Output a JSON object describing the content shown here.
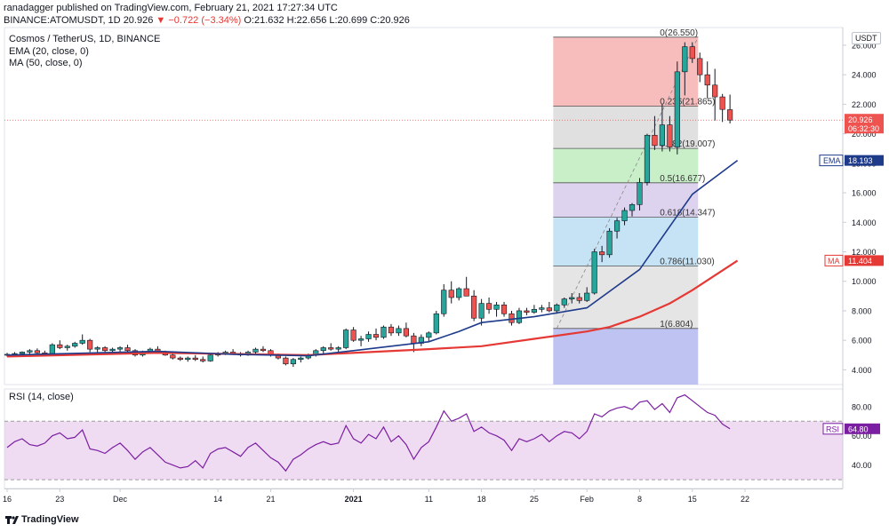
{
  "header": {
    "published": "ranadagger published on TradingView.com, February 21, 2021 17:27:34 UTC",
    "symbol": "BINANCE:ATOMUSDT, 1D",
    "last": "20.926",
    "change": "▼ −0.722 (−3.34%)",
    "ohlc": "O:21.632 H:22.656 L:20.699 C:20.926"
  },
  "legend": {
    "title": "Cosmos / TetherUS, 1D, BINANCE",
    "ema": "EMA (20, close, 0)",
    "ma": "MA (50, close, 0)",
    "rsi": "RSI (14, close)"
  },
  "currency": "USDT",
  "footer": {
    "brand": "TradingView"
  },
  "colors": {
    "up": "#26a69a",
    "down": "#ef5350",
    "candle_border": "#131722",
    "ema": "#1e3a8a",
    "ma": "#e53935",
    "rsi": "#7b1fa2",
    "rsi_band": "#e1bee7",
    "fib_0": "#f4a7a7",
    "fib_236": "#d5d5d5",
    "fib_382": "#b7e9b7",
    "fib_5": "#d1c4e9",
    "fib_618": "#b3d9f2",
    "fib_786": "#dcdcdc",
    "fib_1": "#b4b8f0"
  },
  "chart_data": {
    "type": "candlestick",
    "title": "Cosmos / TetherUS, 1D, BINANCE",
    "xlabel": "",
    "ylabel": "",
    "ylim": [
      3,
      27.2
    ],
    "y_ticks": [
      "4.000",
      "6.000",
      "8.000",
      "10.000",
      "12.000",
      "14.000",
      "16.000",
      "18.000",
      "20.000",
      "22.000",
      "24.000",
      "26.000"
    ],
    "x_ticks": [
      {
        "label": "16",
        "day": 0
      },
      {
        "label": "23",
        "day": 7
      },
      {
        "label": "Dec",
        "day": 15
      },
      {
        "label": "14",
        "day": 28
      },
      {
        "label": "21",
        "day": 35
      },
      {
        "label": "2021",
        "day": 46
      },
      {
        "label": "11",
        "day": 56
      },
      {
        "label": "18",
        "day": 63
      },
      {
        "label": "25",
        "day": 70
      },
      {
        "label": "Feb",
        "day": 77
      },
      {
        "label": "8",
        "day": 84
      },
      {
        "label": "15",
        "day": 91
      },
      {
        "label": "22",
        "day": 98
      }
    ],
    "start_date": "2020-11-16",
    "candles": [
      [
        5.0,
        5.15,
        4.9,
        5.05
      ],
      [
        5.05,
        5.2,
        4.95,
        5.1
      ],
      [
        5.1,
        5.25,
        5.0,
        5.2
      ],
      [
        5.2,
        5.4,
        5.05,
        5.3
      ],
      [
        5.3,
        5.45,
        5.1,
        5.15
      ],
      [
        5.15,
        5.3,
        5.0,
        5.1
      ],
      [
        5.1,
        5.8,
        5.05,
        5.7
      ],
      [
        5.7,
        6.0,
        5.4,
        5.5
      ],
      [
        5.5,
        5.7,
        5.3,
        5.6
      ],
      [
        5.6,
        5.9,
        5.5,
        5.8
      ],
      [
        5.8,
        6.4,
        5.7,
        6.0
      ],
      [
        6.0,
        6.1,
        5.2,
        5.4
      ],
      [
        5.4,
        5.6,
        5.2,
        5.5
      ],
      [
        5.5,
        5.6,
        5.2,
        5.3
      ],
      [
        5.3,
        5.5,
        5.1,
        5.4
      ],
      [
        5.4,
        5.6,
        5.2,
        5.5
      ],
      [
        5.5,
        5.7,
        5.2,
        5.3
      ],
      [
        5.3,
        5.4,
        4.9,
        5.0
      ],
      [
        5.0,
        5.3,
        4.9,
        5.2
      ],
      [
        5.2,
        5.5,
        5.1,
        5.4
      ],
      [
        5.4,
        5.6,
        5.1,
        5.2
      ],
      [
        5.2,
        5.3,
        4.95,
        5.0
      ],
      [
        5.0,
        5.1,
        4.7,
        4.8
      ],
      [
        4.8,
        4.9,
        4.6,
        4.7
      ],
      [
        4.7,
        4.9,
        4.55,
        4.8
      ],
      [
        4.8,
        5.0,
        4.6,
        4.7
      ],
      [
        4.7,
        4.9,
        4.5,
        4.6
      ],
      [
        4.6,
        5.1,
        4.55,
        5.0
      ],
      [
        5.0,
        5.2,
        4.9,
        5.1
      ],
      [
        5.1,
        5.3,
        5.0,
        5.2
      ],
      [
        5.2,
        5.4,
        5.05,
        5.1
      ],
      [
        5.1,
        5.2,
        4.9,
        5.0
      ],
      [
        5.0,
        5.3,
        4.95,
        5.2
      ],
      [
        5.2,
        5.5,
        5.1,
        5.4
      ],
      [
        5.4,
        5.6,
        5.2,
        5.3
      ],
      [
        5.3,
        5.4,
        4.9,
        5.0
      ],
      [
        5.0,
        5.1,
        4.7,
        4.8
      ],
      [
        4.8,
        4.9,
        4.3,
        4.4
      ],
      [
        4.4,
        4.8,
        4.2,
        4.7
      ],
      [
        4.7,
        4.9,
        4.5,
        4.8
      ],
      [
        4.8,
        5.1,
        4.7,
        5.0
      ],
      [
        5.0,
        5.4,
        4.9,
        5.3
      ],
      [
        5.3,
        5.6,
        5.1,
        5.5
      ],
      [
        5.5,
        5.8,
        5.3,
        5.4
      ],
      [
        5.4,
        5.6,
        5.2,
        5.5
      ],
      [
        5.5,
        6.8,
        5.4,
        6.7
      ],
      [
        6.7,
        6.9,
        5.9,
        6.0
      ],
      [
        6.0,
        6.3,
        5.6,
        6.1
      ],
      [
        6.1,
        6.6,
        5.9,
        6.4
      ],
      [
        6.4,
        6.8,
        6.0,
        6.2
      ],
      [
        6.2,
        7.0,
        6.1,
        6.9
      ],
      [
        6.9,
        7.1,
        6.3,
        6.5
      ],
      [
        6.5,
        7.0,
        6.3,
        6.8
      ],
      [
        6.8,
        7.2,
        6.2,
        6.3
      ],
      [
        6.3,
        6.5,
        5.2,
        5.8
      ],
      [
        5.8,
        6.4,
        5.6,
        6.2
      ],
      [
        6.2,
        6.6,
        5.9,
        6.5
      ],
      [
        6.5,
        8.0,
        6.4,
        7.8
      ],
      [
        7.8,
        9.8,
        7.6,
        9.4
      ],
      [
        9.4,
        10.0,
        8.5,
        8.9
      ],
      [
        8.9,
        9.6,
        8.7,
        9.5
      ],
      [
        9.5,
        10.3,
        9.2,
        9.0
      ],
      [
        9.0,
        9.4,
        7.3,
        7.5
      ],
      [
        7.5,
        8.8,
        7.0,
        8.5
      ],
      [
        8.5,
        8.9,
        7.8,
        8.1
      ],
      [
        8.1,
        8.6,
        7.6,
        8.4
      ],
      [
        8.4,
        8.6,
        7.6,
        7.8
      ],
      [
        7.8,
        8.0,
        7.0,
        7.2
      ],
      [
        7.2,
        8.2,
        7.1,
        8.0
      ],
      [
        8.0,
        8.2,
        7.7,
        7.9
      ],
      [
        7.9,
        8.4,
        7.8,
        8.1
      ],
      [
        8.1,
        8.4,
        7.9,
        8.2
      ],
      [
        8.2,
        8.6,
        7.9,
        8.0
      ],
      [
        8.0,
        8.5,
        7.8,
        8.4
      ],
      [
        8.4,
        8.9,
        8.2,
        8.8
      ],
      [
        8.8,
        9.2,
        8.5,
        8.9
      ],
      [
        8.9,
        9.2,
        8.5,
        8.7
      ],
      [
        8.7,
        9.6,
        8.6,
        9.2
      ],
      [
        9.2,
        12.2,
        9.1,
        12.0
      ],
      [
        12.0,
        12.4,
        11.3,
        11.8
      ],
      [
        11.8,
        13.6,
        11.6,
        13.4
      ],
      [
        13.4,
        14.3,
        12.9,
        14.1
      ],
      [
        14.1,
        15.0,
        13.8,
        14.8
      ],
      [
        14.8,
        15.3,
        14.4,
        15.2
      ],
      [
        15.2,
        17.0,
        14.8,
        16.7
      ],
      [
        16.7,
        20.0,
        16.5,
        19.9
      ],
      [
        19.9,
        21.2,
        18.9,
        19.2
      ],
      [
        19.2,
        22.0,
        18.8,
        20.6
      ],
      [
        20.6,
        21.2,
        18.8,
        19.1
      ],
      [
        19.1,
        24.9,
        18.6,
        24.2
      ],
      [
        24.2,
        26.2,
        22.6,
        25.9
      ],
      [
        25.9,
        26.2,
        24.8,
        25.1
      ],
      [
        25.1,
        25.5,
        23.5,
        24.0
      ],
      [
        24.0,
        24.9,
        22.4,
        23.3
      ],
      [
        23.3,
        24.4,
        20.9,
        22.5
      ],
      [
        22.5,
        22.7,
        20.8,
        21.65
      ],
      [
        21.632,
        22.656,
        20.699,
        20.926
      ]
    ],
    "ema": {
      "name": "EMA (20, close, 0)",
      "points": [
        [
          0,
          5.0
        ],
        [
          20,
          5.25
        ],
        [
          30,
          5.05
        ],
        [
          40,
          4.95
        ],
        [
          46,
          5.3
        ],
        [
          56,
          5.9
        ],
        [
          60,
          6.6
        ],
        [
          63,
          7.2
        ],
        [
          70,
          7.6
        ],
        [
          77,
          8.2
        ],
        [
          84,
          10.8
        ],
        [
          91,
          15.9
        ],
        [
          97,
          18.193
        ]
      ]
    },
    "ma": {
      "name": "MA (50, close, 0)",
      "points": [
        [
          0,
          4.9
        ],
        [
          20,
          5.15
        ],
        [
          40,
          5.0
        ],
        [
          56,
          5.4
        ],
        [
          63,
          5.6
        ],
        [
          70,
          6.1
        ],
        [
          77,
          6.6
        ],
        [
          80,
          6.9
        ],
        [
          84,
          7.6
        ],
        [
          88,
          8.5
        ],
        [
          91,
          9.4
        ],
        [
          97,
          11.404
        ]
      ]
    },
    "rsi": {
      "name": "RSI (14, close)",
      "ylim": [
        24,
        92
      ],
      "y_ticks": [
        "40.00",
        "60.00",
        "80.00"
      ],
      "band": [
        30,
        70
      ],
      "values": [
        52,
        56,
        58,
        54,
        53,
        55,
        60,
        62,
        58,
        59,
        64,
        51,
        50,
        48,
        52,
        55,
        50,
        44,
        49,
        52,
        47,
        42,
        40,
        38,
        39,
        43,
        38,
        48,
        51,
        52,
        49,
        46,
        52,
        55,
        50,
        45,
        42,
        36,
        44,
        47,
        51,
        54,
        56,
        54,
        55,
        67,
        58,
        55,
        61,
        58,
        66,
        56,
        60,
        54,
        44,
        52,
        56,
        66,
        77,
        70,
        72,
        75,
        63,
        66,
        62,
        60,
        57,
        50,
        58,
        56,
        58,
        61,
        56,
        60,
        63,
        62,
        58,
        63,
        75,
        73,
        77,
        79,
        80,
        78,
        83,
        84,
        78,
        82,
        76,
        86,
        88,
        84,
        80,
        76,
        74,
        68,
        64.8
      ],
      "last_label": "64.80"
    },
    "fib": {
      "x_start_day": 73,
      "x_end_day": 92,
      "levels": [
        {
          "ratio": 0,
          "price": 26.55,
          "label": "0(26.550)"
        },
        {
          "ratio": 0.236,
          "price": 21.865,
          "label": "0.236(21.865)"
        },
        {
          "ratio": 0.382,
          "price": 19.007,
          "label": "0.382(19.007)"
        },
        {
          "ratio": 0.5,
          "price": 16.677,
          "label": "0.5(16.677)"
        },
        {
          "ratio": 0.618,
          "price": 14.347,
          "label": "0.618(14.347)"
        },
        {
          "ratio": 0.786,
          "price": 11.03,
          "label": "0.786(11.030)"
        },
        {
          "ratio": 1,
          "price": 6.804,
          "label": "1(6.804)"
        }
      ]
    },
    "price_tags": {
      "last": "20.926",
      "countdown": "06:32:30",
      "ema_label": "EMA",
      "ema_value": "18.193",
      "ma_label": "MA",
      "ma_value": "11.404",
      "rsi_label": "RSI",
      "rsi_value": "64.80"
    }
  }
}
